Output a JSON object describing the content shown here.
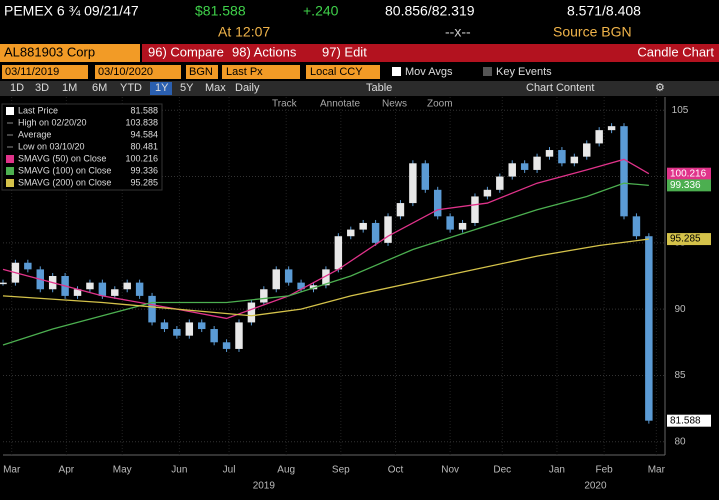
{
  "header": {
    "security": "PEMEX 6 ¾ 09/21/47",
    "price": "$81.588",
    "change": "+.240",
    "bid_ask": "80.856/82.319",
    "yield": "8.571/8.408",
    "time": "At 12:07",
    "size": "--x--",
    "source": "Source BGN"
  },
  "toolbar": {
    "ticker": "AL881903 Corp",
    "compare": "96) Compare",
    "actions": "98) Actions",
    "edit": "97) Edit",
    "chart_type": "Candle Chart"
  },
  "settings": {
    "start_date": "03/11/2019",
    "end_date": "03/10/2020",
    "source": "BGN",
    "field": "Last Px",
    "currency": "Local CCY",
    "mov_avgs": "Mov Avgs",
    "key_events": "Key Events"
  },
  "periods": [
    "1D",
    "3D",
    "1M",
    "6M",
    "YTD",
    "1Y",
    "5Y",
    "Max"
  ],
  "frequency": "Daily",
  "table": "Table",
  "chart_content": "Chart Content",
  "tools": [
    "Track",
    "Annotate",
    "News",
    "Zoom"
  ],
  "chart_data": {
    "type": "candlestick",
    "series": [
      {
        "name": "Last Price",
        "color": "#5b9bd5",
        "values": [
          92,
          93.5,
          93,
          91.5,
          92.5,
          91,
          91.5,
          92,
          91,
          91.5,
          92,
          91,
          89,
          88.5,
          88,
          89,
          88.5,
          87.5,
          87,
          89,
          90.5,
          91.5,
          93,
          92,
          91.5,
          91.8,
          93,
          95.5,
          96,
          96.5,
          95,
          97,
          98,
          101,
          99,
          97,
          96,
          96.5,
          98.5,
          99,
          100,
          101,
          100.5,
          101.5,
          102,
          101,
          101.5,
          102.5,
          103.5,
          103.8,
          97,
          95.5,
          81.588
        ]
      },
      {
        "name": "SMAVG (50) on Close",
        "color": "#e0338a",
        "x": [
          0,
          4,
          8,
          14,
          18,
          23,
          27,
          31,
          35,
          39,
          43,
          47,
          50,
          52
        ],
        "values": [
          93,
          92,
          91,
          90,
          89.3,
          91,
          93,
          95.5,
          97.5,
          98,
          99.5,
          100.5,
          101.3,
          100.216
        ]
      },
      {
        "name": "SMAVG (100) on Close",
        "color": "#4caf50",
        "x": [
          0,
          4,
          8,
          12,
          18,
          23,
          28,
          33,
          38,
          43,
          47,
          50,
          52
        ],
        "values": [
          87.3,
          88.5,
          89.5,
          90.5,
          90.5,
          91,
          92.5,
          94.5,
          96,
          97.5,
          98.5,
          99.5,
          99.336
        ]
      },
      {
        "name": "SMAVG (200) on Close",
        "color": "#d4c24a",
        "x": [
          0,
          8,
          14,
          20,
          24,
          28,
          33,
          38,
          43,
          48,
          52
        ],
        "values": [
          91,
          90.5,
          90,
          89.5,
          90,
          91,
          92,
          93,
          94,
          94.8,
          95.285
        ]
      }
    ],
    "stats": [
      {
        "label": "High on 02/20/20",
        "value": 103.838
      },
      {
        "label": "Average",
        "value": 94.584
      },
      {
        "label": "Low on 03/10/20",
        "value": 80.481
      }
    ],
    "xlim": [
      0,
      53.3
    ],
    "xticks": [
      {
        "value": 0.7,
        "label": "Mar"
      },
      {
        "value": 5.1,
        "label": "Apr"
      },
      {
        "value": 9.6,
        "label": "May"
      },
      {
        "value": 14.2,
        "label": "Jun"
      },
      {
        "value": 18.2,
        "label": "Jul"
      },
      {
        "value": 22.8,
        "label": "Aug"
      },
      {
        "value": 27.2,
        "label": "Sep"
      },
      {
        "value": 31.6,
        "label": "Oct"
      },
      {
        "value": 36,
        "label": "Nov"
      },
      {
        "value": 40.2,
        "label": "Dec"
      },
      {
        "value": 44.6,
        "label": "Jan"
      },
      {
        "value": 48.4,
        "label": "Feb"
      },
      {
        "value": 52.6,
        "label": "Mar"
      }
    ],
    "years": [
      {
        "value": 21,
        "label": "2019"
      },
      {
        "value": 47.7,
        "label": "2020"
      }
    ],
    "ylim": [
      79,
      106
    ],
    "yticks": [
      80,
      85,
      90,
      95,
      100,
      105
    ],
    "grid": true
  }
}
